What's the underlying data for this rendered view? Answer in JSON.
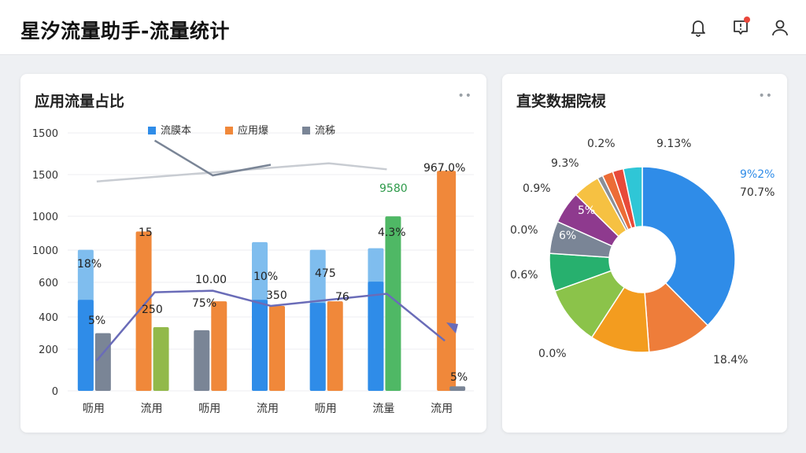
{
  "header": {
    "title": "星汐流量助手-流量统计",
    "icons": [
      "bell-icon",
      "notification-icon",
      "user-icon"
    ],
    "notification_color": "#e9463a"
  },
  "left_card": {
    "title": "应用流量占比",
    "more": "••"
  },
  "right_card": {
    "title": "直奖数据院棂",
    "more": "••"
  },
  "chart_data": [
    {
      "type": "bar",
      "title": "",
      "legend_position": "top",
      "categories": [
        "呖用",
        "流用",
        "呖用",
        "流用",
        "呖用",
        "流量",
        "流用"
      ],
      "y_tick_labels": [
        "0",
        "200",
        "400",
        "600",
        "1000",
        "1000",
        "1500",
        "1500"
      ],
      "series": [
        {
          "name": "流膜本",
          "color": "#2f8ce8",
          "values": [
            600,
            null,
            null,
            600,
            580,
            720,
            null
          ]
        },
        {
          "name": "应用爆",
          "color": "#f0883a",
          "values": [
            null,
            1050,
            590,
            560,
            590,
            null,
            1450
          ]
        },
        {
          "name": "流秭",
          "color": "#7a8596",
          "values": [
            380,
            null,
            400,
            null,
            null,
            null,
            30
          ]
        }
      ],
      "extra_series": [
        {
          "name": "",
          "color": "#7fbdee",
          "values": [
            930,
            null,
            null,
            980,
            930,
            940,
            null
          ]
        },
        {
          "name": "",
          "color": "#92b94a",
          "values": [
            null,
            420,
            null,
            null,
            null,
            null,
            null
          ]
        },
        {
          "name": "",
          "color": "#4fb865",
          "values": [
            null,
            null,
            null,
            null,
            null,
            1150,
            null
          ]
        }
      ],
      "data_labels": [
        "18%",
        "5%",
        "15",
        "250",
        "10.00",
        "75%",
        "10%",
        "350",
        "475",
        "76",
        "4.3%",
        "9580",
        "967.0%",
        "5%"
      ],
      "lines": [
        {
          "name": "",
          "color": "#c8ccd2",
          "values": [
            1380,
            null,
            null,
            null,
            1500,
            1460,
            null
          ]
        },
        {
          "name": "",
          "color": "#7a8596",
          "values": [
            null,
            1650,
            1420,
            1490,
            null,
            null,
            null
          ]
        },
        {
          "name": "",
          "color": "#6a6cb8",
          "values": [
            200,
            650,
            660,
            560,
            600,
            640,
            330
          ]
        }
      ],
      "grid": true
    },
    {
      "type": "pie",
      "title": "",
      "donut": true,
      "slices": [
        {
          "value": 40,
          "color": "#2f8ce8"
        },
        {
          "value": 12,
          "color": "#ee7d3a"
        },
        {
          "value": 11,
          "color": "#f39c1f"
        },
        {
          "value": 11,
          "color": "#8bc34a"
        },
        {
          "value": 7,
          "color": "#27b06e"
        },
        {
          "value": 6,
          "color": "#7a8596"
        },
        {
          "value": 6,
          "color": "#8e3a8e"
        },
        {
          "value": 5,
          "color": "#f6c142"
        },
        {
          "value": 1,
          "color": "#8a8f98"
        },
        {
          "value": 2,
          "color": "#ec6c36"
        },
        {
          "value": 2,
          "color": "#e84a3a"
        },
        {
          "value": 3.5,
          "color": "#2fc6d6"
        }
      ],
      "outer_labels": [
        "9.13%",
        "9%2%",
        "70.7%",
        "18.4%",
        "0.0%",
        "0.6%",
        "0.0%",
        "0.9%",
        "9.3%",
        "0.2%"
      ],
      "inner_labels": [
        "5%",
        "6%"
      ]
    }
  ]
}
